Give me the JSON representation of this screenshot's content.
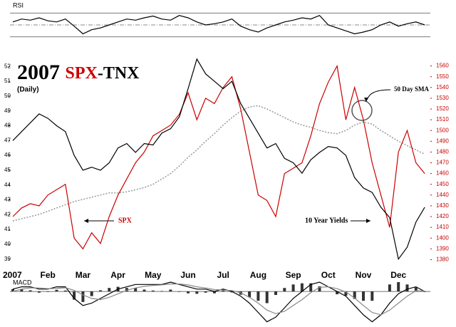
{
  "chart_data": [
    {
      "type": "line",
      "label": "RSI",
      "series": [
        {
          "color": "#000000",
          "values": [
            55,
            60,
            58,
            62,
            57,
            55,
            60,
            48,
            35,
            42,
            45,
            50,
            55,
            60,
            58,
            62,
            65,
            60,
            58,
            66,
            62,
            55,
            50,
            52,
            55,
            60,
            48,
            42,
            38,
            45,
            50,
            55,
            58,
            62,
            60,
            66,
            50,
            45,
            40,
            35,
            38,
            42,
            50,
            55,
            48,
            52,
            55,
            50
          ]
        }
      ],
      "ylim": [
        20,
        80
      ],
      "reference_lines": [
        30,
        50,
        70
      ]
    },
    {
      "type": "line",
      "title_year": "2007",
      "title_spx": "SPX",
      "title_tnx": "-TNX",
      "subtitle": "(Daily)",
      "categories": [
        "2007",
        null,
        null,
        null,
        "Feb",
        null,
        null,
        null,
        "Mar",
        null,
        null,
        null,
        "Apr",
        null,
        null,
        null,
        "May",
        null,
        null,
        null,
        "Jun",
        null,
        null,
        null,
        "Jul",
        null,
        null,
        null,
        "Aug",
        null,
        null,
        null,
        "Sep",
        null,
        null,
        null,
        "Oct",
        null,
        null,
        null,
        "Nov",
        null,
        null,
        null,
        "Dec",
        null,
        null,
        null
      ],
      "series": [
        {
          "name": "10 Year Yields",
          "color": "#000000",
          "values": [
            47,
            47.6,
            48.2,
            48.8,
            48.5,
            48,
            47.6,
            46,
            45,
            45.2,
            45,
            45.5,
            46.5,
            46.8,
            46.2,
            46.8,
            46.7,
            47.5,
            47.8,
            48.6,
            50.5,
            52.5,
            51.5,
            51,
            50.5,
            51,
            49.5,
            48.5,
            47.5,
            46.5,
            46.8,
            45.8,
            45.5,
            44.8,
            45.7,
            46.2,
            46.6,
            46.5,
            46,
            44.5,
            43.8,
            43.5,
            42.5,
            41.8,
            39,
            39.8,
            41.5,
            42.5
          ]
        },
        {
          "name": "SPX",
          "color": "#cc0000",
          "axis": "y2",
          "values": [
            1420,
            1428,
            1432,
            1430,
            1440,
            1445,
            1450,
            1400,
            1390,
            1405,
            1395,
            1420,
            1440,
            1455,
            1470,
            1480,
            1495,
            1500,
            1505,
            1515,
            1535,
            1510,
            1530,
            1525,
            1540,
            1550,
            1520,
            1480,
            1440,
            1435,
            1420,
            1460,
            1465,
            1470,
            1495,
            1525,
            1545,
            1560,
            1510,
            1540,
            1510,
            1470,
            1440,
            1410,
            1480,
            1500,
            1470,
            1460
          ]
        },
        {
          "name": "50 Day SMA",
          "color": "#999999",
          "axis": "y2",
          "dashed": true,
          "values": [
            1416,
            1418,
            1420,
            1422,
            1425,
            1428,
            1431,
            1434,
            1436,
            1438,
            1440,
            1442,
            1442,
            1443,
            1445,
            1447,
            1450,
            1455,
            1460,
            1467,
            1475,
            1482,
            1490,
            1497,
            1505,
            1512,
            1518,
            1522,
            1523,
            1520,
            1516,
            1512,
            1508,
            1505,
            1503,
            1500,
            1498,
            1497,
            1500,
            1505,
            1508,
            1506,
            1500,
            1495,
            1490,
            1486,
            1482,
            1478
          ]
        }
      ],
      "ylim": [
        38.6,
        52.4
      ],
      "yticks": [
        39,
        40,
        41,
        42,
        43,
        44,
        45,
        46,
        47,
        48,
        49,
        50,
        51,
        52
      ],
      "y2lim": [
        1375,
        1565
      ],
      "y2ticks": [
        1380,
        1390,
        1400,
        1410,
        1420,
        1430,
        1440,
        1450,
        1460,
        1470,
        1480,
        1490,
        1500,
        1510,
        1520,
        1530,
        1540,
        1550,
        1560
      ]
    },
    {
      "type": "macd",
      "label": "MACD",
      "series": [
        {
          "color": "#000000",
          "values": [
            1,
            2,
            2,
            1,
            1,
            2,
            2,
            -3,
            -6,
            -5,
            -3,
            -1,
            1,
            2,
            3,
            3,
            3,
            3,
            4,
            3,
            2,
            1,
            1,
            0,
            1,
            0,
            -2,
            -5,
            -9,
            -13,
            -11,
            -7,
            -3,
            0,
            3,
            4,
            2,
            0,
            -2,
            -6,
            -10,
            -13,
            -10,
            -5,
            -1,
            1,
            2,
            0
          ]
        },
        {
          "color": "#888888",
          "values": [
            0,
            1,
            1.5,
            1.5,
            1.2,
            1.3,
            1.6,
            0.5,
            -1.5,
            -3,
            -3.5,
            -2.5,
            -1,
            0.5,
            1.5,
            2.2,
            2.6,
            2.8,
            3.2,
            3.2,
            2.8,
            2,
            1.5,
            0.8,
            0.6,
            0.4,
            -0.6,
            -2.5,
            -5,
            -8,
            -9.5,
            -8.5,
            -6,
            -3.5,
            -0.5,
            1.8,
            2,
            1.2,
            -0.2,
            -2.8,
            -6,
            -9,
            -10,
            -8,
            -5,
            -2,
            0.3,
            0.2
          ]
        }
      ],
      "histogram": [
        1,
        1,
        0.5,
        -0.5,
        -0.2,
        0.7,
        0.4,
        -3.5,
        -4.5,
        -2,
        0.5,
        1.5,
        2,
        1.5,
        1.5,
        0.8,
        0.4,
        0.2,
        0.8,
        -0.2,
        -0.8,
        -1,
        -0.5,
        -0.8,
        0.4,
        -0.4,
        -1.4,
        -2.5,
        -4,
        -5,
        -1.5,
        1.5,
        3,
        3.5,
        3.5,
        2.2,
        0,
        -1.2,
        -1.8,
        -3.2,
        -4,
        -4,
        0,
        3,
        4,
        3,
        1.7,
        -0.2
      ],
      "ylim": [
        -14,
        4
      ]
    }
  ]
}
